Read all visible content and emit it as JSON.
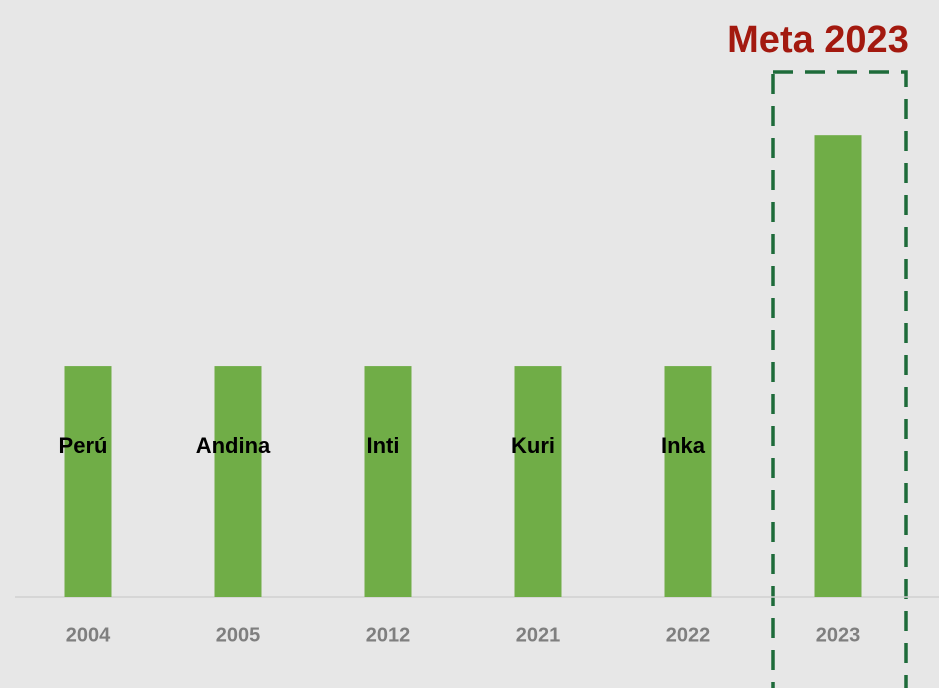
{
  "chart_data": {
    "type": "bar",
    "annotation": "Meta 2023",
    "categories": [
      "2004",
      "2005",
      "2012",
      "2021",
      "2022",
      "2023"
    ],
    "values": [
      1,
      1,
      1,
      1,
      1,
      2
    ],
    "bar_labels": [
      "Perú",
      "Andina",
      "Inti",
      "Kuri",
      "Inka",
      null
    ],
    "color": "#70ad47",
    "ylim": [
      0,
      2.2
    ]
  }
}
